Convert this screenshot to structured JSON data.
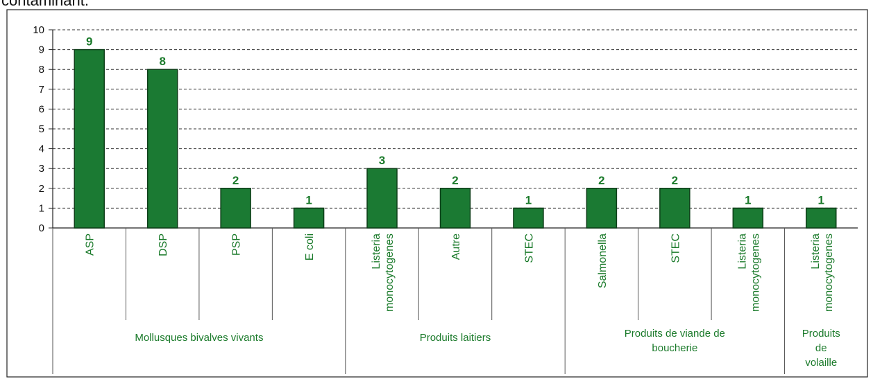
{
  "page": {
    "heading": "contaminant."
  },
  "chart_data": {
    "type": "bar",
    "ylim": [
      0,
      10
    ],
    "yticks": [
      0,
      1,
      2,
      3,
      4,
      5,
      6,
      7,
      8,
      9,
      10
    ],
    "grid": true,
    "colors": {
      "bar": "#1b7a33",
      "bar_edge": "#0d3d18",
      "label": "#1a7a2a"
    },
    "categories": [
      {
        "label": [
          "ASP"
        ],
        "value": 9,
        "group": 0
      },
      {
        "label": [
          "DSP"
        ],
        "value": 8,
        "group": 0
      },
      {
        "label": [
          "PSP"
        ],
        "value": 2,
        "group": 0
      },
      {
        "label": [
          "E coli"
        ],
        "value": 1,
        "group": 0
      },
      {
        "label": [
          "Listeria",
          "monocytogenes"
        ],
        "value": 3,
        "group": 1
      },
      {
        "label": [
          "Autre"
        ],
        "value": 2,
        "group": 1
      },
      {
        "label": [
          "STEC"
        ],
        "value": 1,
        "group": 1
      },
      {
        "label": [
          "Salmonella"
        ],
        "value": 2,
        "group": 2
      },
      {
        "label": [
          "STEC"
        ],
        "value": 2,
        "group": 2
      },
      {
        "label": [
          "Listeria",
          "monocytogenes"
        ],
        "value": 1,
        "group": 2
      },
      {
        "label": [
          "Listeria",
          "monocytogenes"
        ],
        "value": 1,
        "group": 3
      }
    ],
    "groups": [
      {
        "label": [
          "Mollusques bivalves vivants"
        ]
      },
      {
        "label": [
          "Produits laitiers"
        ]
      },
      {
        "label": [
          "Produits de viande de",
          "boucherie"
        ]
      },
      {
        "label": [
          "Produits",
          "de",
          "volaille"
        ]
      }
    ]
  }
}
